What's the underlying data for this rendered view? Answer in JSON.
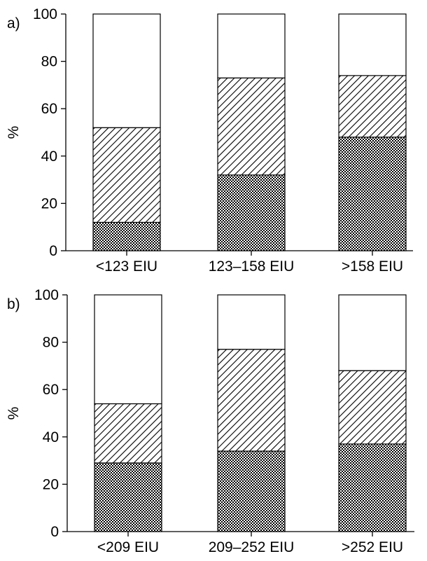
{
  "chart_data": [
    {
      "type": "bar",
      "stacked": true,
      "panel_label": "a)",
      "ylabel": "%",
      "ylim": [
        0,
        100
      ],
      "yticks": [
        "0",
        "20",
        "40",
        "60",
        "80",
        "100"
      ],
      "categories": [
        "<123 EIU",
        "123–158 EIU",
        ">158 EIU"
      ],
      "series": [
        {
          "pattern": "dotted",
          "values": [
            12,
            32,
            48
          ]
        },
        {
          "pattern": "hatched",
          "values": [
            40,
            41,
            26
          ]
        },
        {
          "pattern": "blank",
          "values": [
            48,
            27,
            26
          ]
        }
      ],
      "grid": false
    },
    {
      "type": "bar",
      "stacked": true,
      "panel_label": "b)",
      "ylabel": "%",
      "ylim": [
        0,
        100
      ],
      "yticks": [
        "0",
        "20",
        "40",
        "60",
        "80",
        "100"
      ],
      "categories": [
        "<209 EIU",
        "209–252 EIU",
        ">252 EIU"
      ],
      "series": [
        {
          "pattern": "dotted",
          "values": [
            29,
            34,
            37
          ]
        },
        {
          "pattern": "hatched",
          "values": [
            25,
            43,
            31
          ]
        },
        {
          "pattern": "blank",
          "values": [
            46,
            23,
            32
          ]
        }
      ],
      "grid": false
    }
  ]
}
